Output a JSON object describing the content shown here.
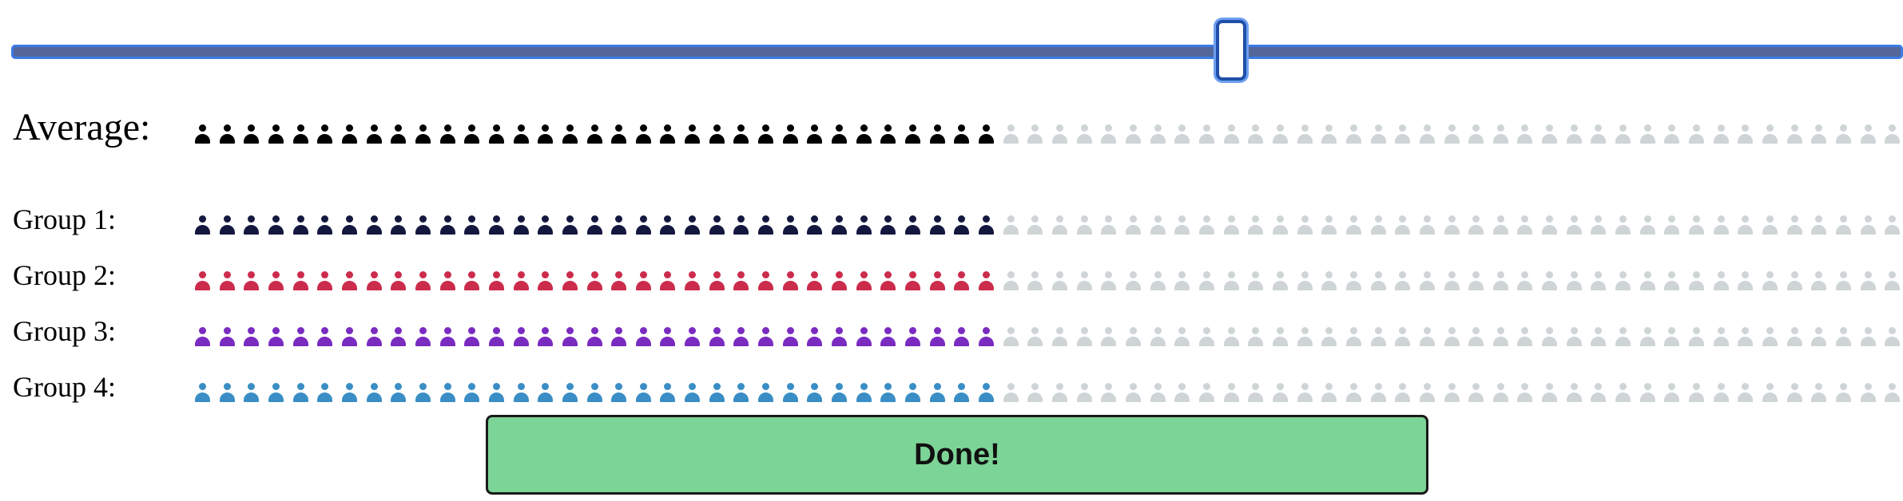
{
  "slider": {
    "value": 0.645,
    "track_color": "#54679a",
    "border_color": "#3b7be6"
  },
  "icon_count": 70,
  "filled_count": 33,
  "unfilled_color": "#cfd4d6",
  "rows": [
    {
      "label": "Average:",
      "kind": "average",
      "color": "#000000"
    },
    {
      "label": "Group 1:",
      "kind": "group",
      "color": "#14183f"
    },
    {
      "label": "Group 2:",
      "kind": "group",
      "color": "#cc2c4c"
    },
    {
      "label": "Group 3:",
      "kind": "group",
      "color": "#7a2bc0"
    },
    {
      "label": "Group 4:",
      "kind": "group",
      "color": "#3a8ec5"
    }
  ],
  "done_button": {
    "label": "Done!",
    "color": "#7dd497"
  }
}
